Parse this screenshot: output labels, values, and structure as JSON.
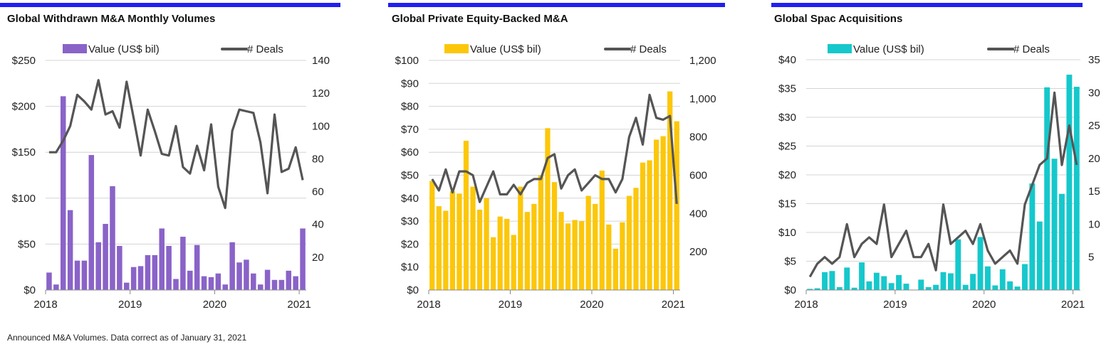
{
  "footnote": "Announced M&A Volumes.  Data correct as of January 31, 2021",
  "chart_data": [
    {
      "type": "bar",
      "title": "Global Withdrawn M&A Monthly Volumes",
      "legend": {
        "bar": "Value (US$ bil)",
        "line": "# Deals",
        "placement": "top"
      },
      "bar_color": "#8a63c8",
      "line_color": "#555555",
      "x_ticks": [
        "2018",
        "2019",
        "2020",
        "2021"
      ],
      "y_ticks_left": [
        "$0",
        "$50",
        "$100",
        "$150",
        "$200",
        "$250"
      ],
      "y_ticks_right": [
        "20",
        "40",
        "60",
        "80",
        "100",
        "120",
        "140"
      ],
      "ylim_left": [
        0,
        250
      ],
      "ylim_right": [
        0,
        140
      ],
      "right_tick_values": [
        20,
        40,
        60,
        80,
        100,
        120,
        140
      ],
      "values": [
        19,
        6,
        211,
        87,
        32,
        32,
        147,
        52,
        72,
        113,
        48,
        8,
        25,
        26,
        38,
        38,
        67,
        48,
        12,
        58,
        21,
        49,
        15,
        14,
        18,
        6,
        52,
        30,
        33,
        18,
        6,
        22,
        11,
        11,
        21,
        15,
        67
      ],
      "deals": [
        84,
        84,
        91,
        100,
        119,
        115,
        110,
        128,
        107,
        109,
        99,
        127,
        105,
        82,
        110,
        97,
        83,
        82,
        100,
        75,
        71,
        88,
        73,
        101,
        63,
        50,
        97,
        110,
        109,
        108,
        90,
        59,
        107,
        72,
        74,
        87,
        67
      ]
    },
    {
      "type": "bar",
      "title": "Global Private Equity-Backed M&A",
      "legend": {
        "bar": "Value (US$ bil)",
        "line": "# Deals",
        "placement": "top"
      },
      "bar_color": "#fcc70a",
      "line_color": "#555555",
      "x_ticks": [
        "2018",
        "2019",
        "2020",
        "2021"
      ],
      "y_ticks_left": [
        "$0",
        "$10",
        "$20",
        "$30",
        "$40",
        "$50",
        "$60",
        "$70",
        "$80",
        "$90",
        "$100"
      ],
      "y_ticks_right": [
        "200",
        "400",
        "600",
        "800",
        "1,000",
        "1,200"
      ],
      "ylim_left": [
        0,
        100
      ],
      "ylim_right": [
        0,
        1200
      ],
      "right_tick_values": [
        200,
        400,
        600,
        800,
        1000,
        1200
      ],
      "values": [
        47.5,
        36.5,
        34.5,
        43,
        42,
        65,
        45,
        35,
        40,
        23,
        32,
        31,
        24,
        45,
        34,
        37.5,
        50,
        70.5,
        47,
        34,
        29,
        30.5,
        30,
        41,
        37.5,
        52,
        28.5,
        18,
        29.5,
        41,
        44.5,
        55.5,
        56.5,
        65.5,
        67,
        86.5,
        73.5
      ],
      "deals": [
        580,
        520,
        630,
        510,
        620,
        620,
        600,
        460,
        540,
        620,
        500,
        500,
        550,
        500,
        560,
        580,
        580,
        690,
        710,
        530,
        600,
        630,
        520,
        560,
        600,
        580,
        580,
        510,
        580,
        800,
        900,
        760,
        1020,
        900,
        890,
        910,
        450
      ]
    },
    {
      "type": "bar",
      "title": "Global Spac Acquisitions",
      "legend": {
        "bar": "Value (US$ bil)",
        "line": "# Deals",
        "placement": "top"
      },
      "bar_color": "#15c8cc",
      "line_color": "#555555",
      "x_ticks": [
        "2018",
        "2019",
        "2020",
        "2021"
      ],
      "y_ticks_left": [
        "$0",
        "$5",
        "$10",
        "$15",
        "$20",
        "$25",
        "$30",
        "$35",
        "$40"
      ],
      "y_ticks_right": [
        "5",
        "10",
        "15",
        "20",
        "25",
        "30",
        "35"
      ],
      "ylim_left": [
        0,
        40
      ],
      "ylim_right": [
        0,
        35
      ],
      "right_tick_values": [
        5,
        10,
        15,
        20,
        25,
        30,
        35
      ],
      "values": [
        0.2,
        0.3,
        3.1,
        3.3,
        0.5,
        3.9,
        0.4,
        4.8,
        1.5,
        3.0,
        2.4,
        1.2,
        2.6,
        1.1,
        0.05,
        1.8,
        0.5,
        0.9,
        3.1,
        2.9,
        8.8,
        0.9,
        2.8,
        9.2,
        4.1,
        0.8,
        3.6,
        1.5,
        0.6,
        4.5,
        18.5,
        11.9,
        35.2,
        22.8,
        16.7,
        37.4,
        35.3
      ],
      "deals": [
        2,
        4,
        5,
        4,
        5,
        10,
        5,
        7,
        8,
        7,
        13,
        5,
        7,
        9,
        5,
        5,
        7,
        3,
        13,
        7,
        8,
        9,
        7,
        10,
        6,
        4,
        5,
        6,
        4,
        13,
        16,
        19,
        20,
        30,
        19,
        25,
        19
      ]
    }
  ]
}
